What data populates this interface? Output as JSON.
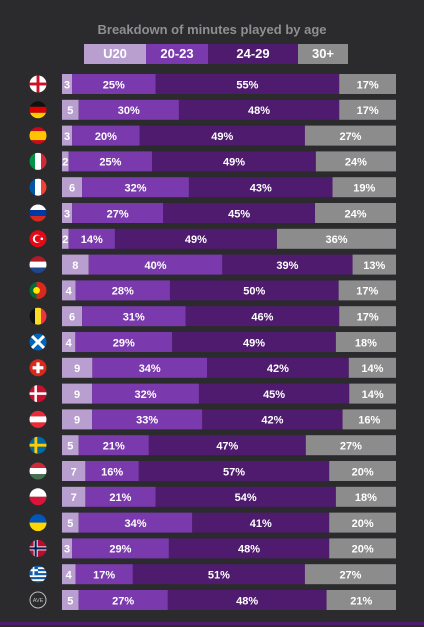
{
  "colors": {
    "U20": "#b99fd0",
    "20-23": "#7a3aad",
    "24-29": "#4f1b6f",
    "30+": "#8c8c8c",
    "background": "#2b2a2c",
    "title": "#8f8f93"
  },
  "chart_data": {
    "type": "bar",
    "stacked": true,
    "orientation": "horizontal",
    "title": "Breakdown of minutes played by age",
    "legend_position": "top",
    "xlim": [
      0,
      100
    ],
    "categories": [
      "England",
      "Germany",
      "Spain",
      "Italy",
      "France",
      "Russia",
      "Turkey",
      "Netherlands",
      "Portugal",
      "Belgium",
      "Scotland",
      "Switzerland",
      "Denmark",
      "Austria",
      "Sweden",
      "Hungary",
      "Poland",
      "Ukraine",
      "Norway",
      "Greece",
      "AVE"
    ],
    "row_icons": [
      "england-flag-icon",
      "germany-flag-icon",
      "spain-flag-icon",
      "italy-flag-icon",
      "france-flag-icon",
      "russia-flag-icon",
      "turkey-flag-icon",
      "netherlands-flag-icon",
      "portugal-flag-icon",
      "belgium-flag-icon",
      "scotland-flag-icon",
      "switzerland-flag-icon",
      "denmark-flag-icon",
      "austria-flag-icon",
      "sweden-flag-icon",
      "hungary-flag-icon",
      "poland-flag-icon",
      "ukraine-flag-icon",
      "norway-flag-icon",
      "greece-flag-icon",
      "average-icon"
    ],
    "series": [
      {
        "name": "U20",
        "values": [
          3,
          5,
          3,
          2,
          6,
          3,
          2,
          8,
          4,
          6,
          4,
          9,
          9,
          9,
          5,
          7,
          7,
          5,
          3,
          4,
          5
        ],
        "labels": [
          "3",
          "5",
          "3",
          "2",
          "6",
          "3",
          "2",
          "8",
          "4",
          "6",
          "4",
          "9",
          "9",
          "9",
          "5",
          "7",
          "7",
          "5",
          "3",
          "4",
          "5"
        ]
      },
      {
        "name": "20-23",
        "values": [
          25,
          30,
          20,
          25,
          32,
          27,
          14,
          40,
          28,
          31,
          29,
          34,
          32,
          33,
          21,
          16,
          21,
          34,
          29,
          17,
          27
        ],
        "labels": [
          "25%",
          "30%",
          "20%",
          "25%",
          "32%",
          "27%",
          "14%",
          "40%",
          "28%",
          "31%",
          "29%",
          "34%",
          "32%",
          "33%",
          "21%",
          "16%",
          "21%",
          "34%",
          "29%",
          "17%",
          "27%"
        ]
      },
      {
        "name": "24-29",
        "values": [
          55,
          48,
          49,
          49,
          43,
          45,
          49,
          39,
          50,
          46,
          49,
          42,
          45,
          42,
          47,
          57,
          54,
          41,
          48,
          51,
          48
        ],
        "labels": [
          "55%",
          "48%",
          "49%",
          "49%",
          "43%",
          "45%",
          "49%",
          "39%",
          "50%",
          "46%",
          "49%",
          "42%",
          "45%",
          "42%",
          "47%",
          "57%",
          "54%",
          "41%",
          "48%",
          "51%",
          "48%"
        ]
      },
      {
        "name": "30+",
        "values": [
          17,
          17,
          27,
          24,
          19,
          24,
          36,
          13,
          17,
          17,
          18,
          14,
          14,
          16,
          27,
          20,
          18,
          20,
          20,
          27,
          21
        ],
        "labels": [
          "17%",
          "17%",
          "27%",
          "24%",
          "19%",
          "24%",
          "36%",
          "13%",
          "17%",
          "17%",
          "18%",
          "14%",
          "14%",
          "16%",
          "27%",
          "20%",
          "18%",
          "20%",
          "20%",
          "27%",
          "21%"
        ]
      }
    ],
    "average_icon_text": "AVE"
  }
}
